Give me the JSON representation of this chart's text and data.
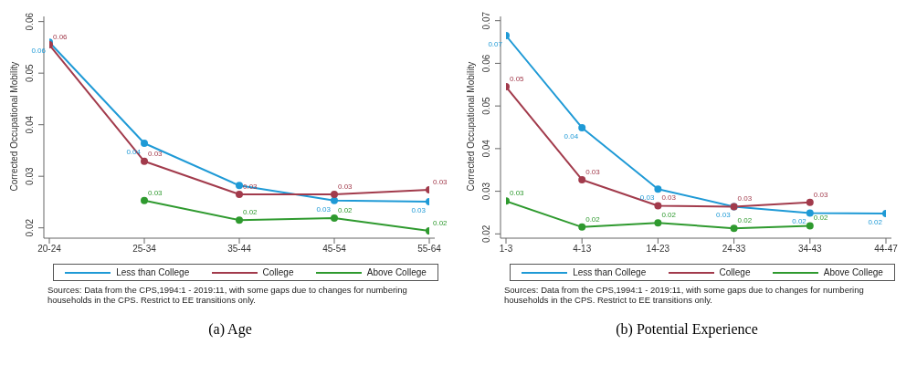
{
  "chart_data": [
    {
      "type": "line",
      "title": "(a)  Age",
      "ylabel": "Corrected Occupational Mobility",
      "categories": [
        "20-24",
        "25-34",
        "35-44",
        "45-54",
        "55-64"
      ],
      "ylim": [
        0.018,
        0.061
      ],
      "yticks": [
        0.02,
        0.03,
        0.04,
        0.05,
        0.06
      ],
      "grid": false,
      "legend": "bottom",
      "marker": "circle",
      "series": [
        {
          "name": "Less than College",
          "color": "#1f9ad6",
          "values": [
            0.056,
            0.0364,
            0.0282,
            0.0253,
            0.0251
          ],
          "value_labels": [
            "0.06",
            "0.04",
            null,
            "0.03",
            "0.03"
          ]
        },
        {
          "name": "College",
          "color": "#a23b4c",
          "values": [
            0.0555,
            0.0329,
            0.0265,
            0.0265,
            0.0274
          ],
          "value_labels": [
            "0.06",
            "0.03",
            "0.03",
            "0.03",
            "0.03"
          ]
        },
        {
          "name": "Above College",
          "color": "#2f9a2f",
          "values": [
            null,
            0.0253,
            0.0215,
            0.0219,
            0.0194
          ],
          "value_labels": [
            null,
            "0.03",
            "0.02",
            "0.02",
            "0.02"
          ]
        }
      ],
      "annotations": [
        "Sources: Data from the CPS,1994:1 - 2019:11, with some gaps due to changes for numbering households in the CPS. Restrict to EE transitions only."
      ]
    },
    {
      "type": "line",
      "title": "(b)  Potential Experience",
      "ylabel": "Corrected Occupational Mobility",
      "categories": [
        "1-3",
        "4-13",
        "14-23",
        "24-33",
        "34-43",
        "44-47"
      ],
      "ylim": [
        0.019,
        0.071
      ],
      "yticks": [
        0.02,
        0.03,
        0.04,
        0.05,
        0.06,
        0.07
      ],
      "grid": false,
      "legend": "bottom",
      "marker": "circle",
      "series": [
        {
          "name": "Less than College",
          "color": "#1f9ad6",
          "values": [
            0.0665,
            0.0449,
            0.0305,
            0.0264,
            0.0249,
            0.0248
          ],
          "value_labels": [
            "0.07",
            "0.04",
            "0.03",
            "0.03",
            "0.02",
            "0.02"
          ]
        },
        {
          "name": "College",
          "color": "#a23b4c",
          "values": [
            0.0545,
            0.0327,
            0.0266,
            0.0264,
            0.0274,
            null
          ],
          "value_labels": [
            "0.05",
            "0.03",
            "0.03",
            "0.03",
            "0.03",
            null
          ]
        },
        {
          "name": "Above College",
          "color": "#2f9a2f",
          "values": [
            0.0277,
            0.0216,
            0.0226,
            0.0213,
            0.0219,
            null
          ],
          "value_labels": [
            "0.03",
            "0.02",
            "0.02",
            "0.02",
            "0.02",
            null
          ]
        }
      ],
      "annotations": [
        "Sources: Data from the CPS,1994:1 - 2019:11, with some gaps due to changes for numbering households in the CPS. Restrict to EE transitions only."
      ]
    }
  ]
}
